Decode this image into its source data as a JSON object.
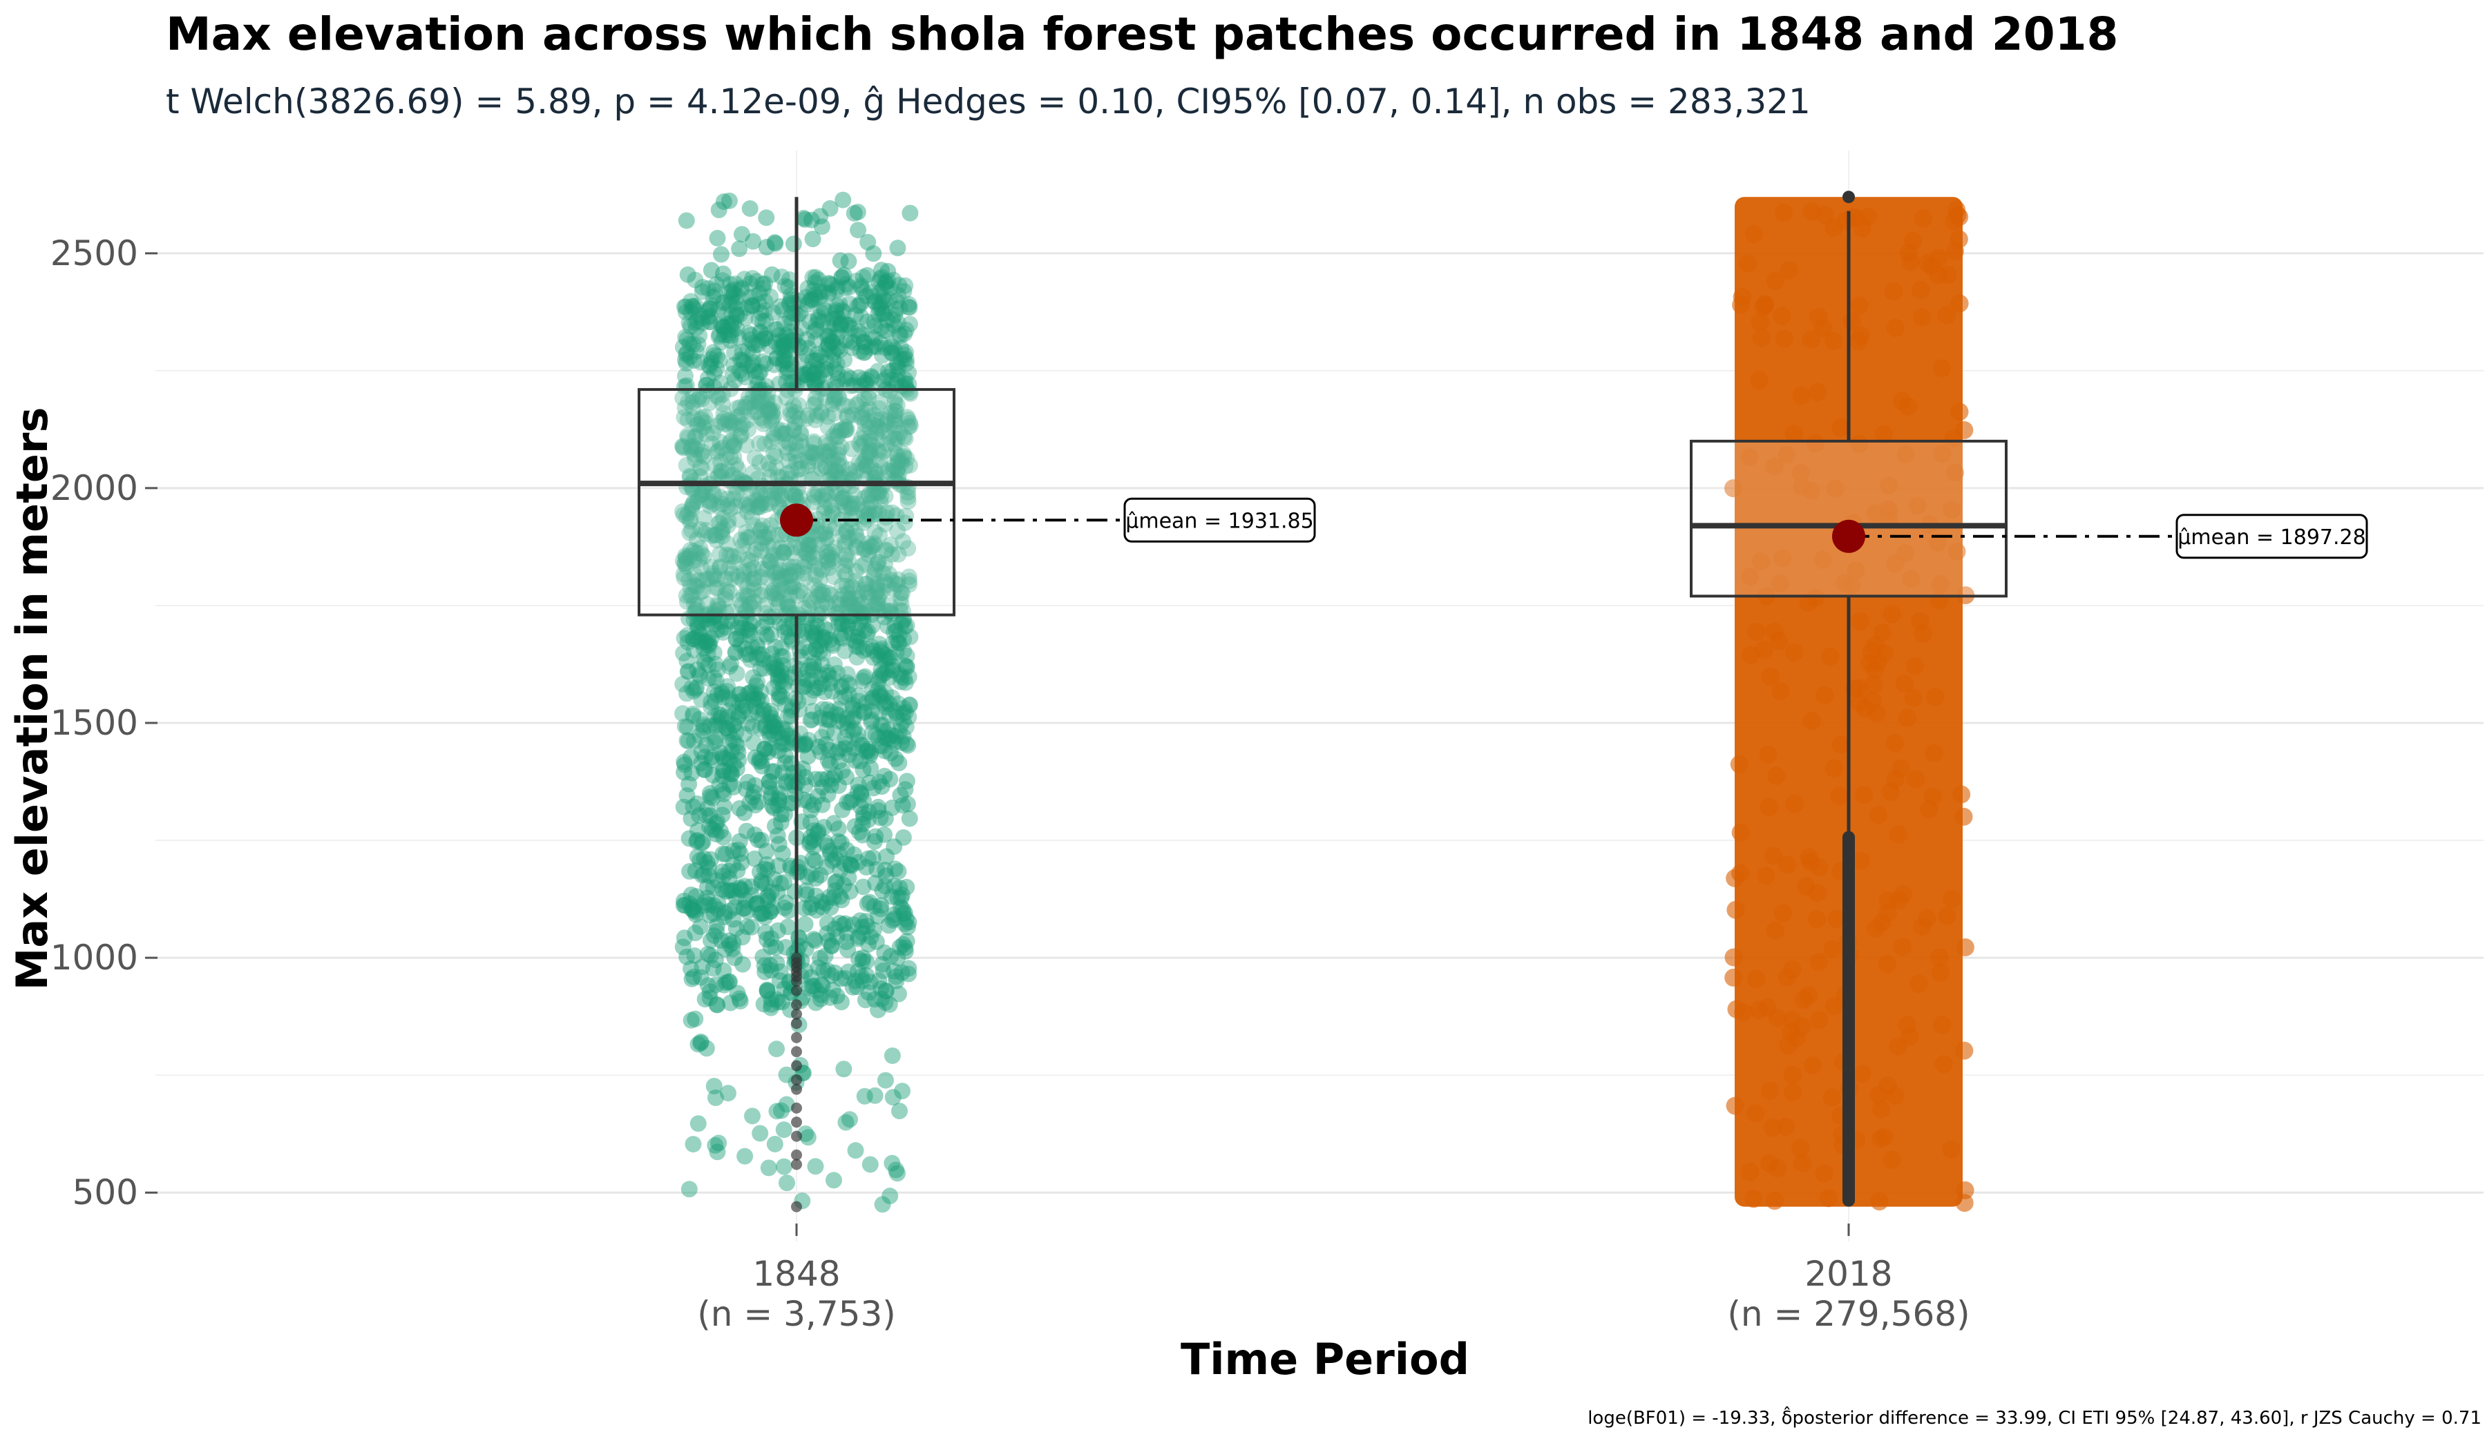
{
  "chart_data": {
    "type": "box",
    "title": "Max elevation across which shola forest patches occurred in 1848 and 2018",
    "subtitle": "t Welch(3826.69) = 5.89, p = 4.12e-09, ĝ Hedges = 0.10, CI95% [0.07, 0.14], n obs = 283,321",
    "xlabel": "Time Period",
    "ylabel": "Max elevation in meters",
    "ylim": [
      440,
      2660
    ],
    "yticks": [
      500,
      1000,
      1500,
      2000,
      2500
    ],
    "grid": true,
    "legend": "none",
    "categories": [
      {
        "name": "1848",
        "n_label": "(n = 3,753)",
        "color": "#1b9e77",
        "q1": 1730,
        "median": 2010,
        "q3": 2210,
        "whisker_low": 1010,
        "whisker_high": 2620,
        "mean": 1931.85,
        "mean_label": "μ̂mean = 1931.85",
        "outliers": [
          1000,
          990,
          980,
          970,
          960,
          950,
          930,
          900,
          880,
          860,
          830,
          800,
          770,
          740,
          720,
          680,
          650,
          620,
          580,
          560,
          470
        ]
      },
      {
        "name": "2018",
        "n_label": "(n = 279,568)",
        "color": "#d95f02",
        "q1": 1770,
        "median": 1920,
        "q3": 2100,
        "whisker_low": 1270,
        "whisker_high": 2590,
        "mean": 1897.28,
        "mean_label": "μ̂mean = 1897.28",
        "outliers": [
          2620
        ]
      }
    ],
    "caption": "loge(BF01) = -19.33, δ̂posterior difference = 33.99, CI ETI 95% [24.87, 43.60], r JZS Cauchy = 0.71",
    "colors": {
      "mean_point": "#8b0000",
      "box_line": "#333333",
      "grid": "#e6e6e6"
    }
  }
}
